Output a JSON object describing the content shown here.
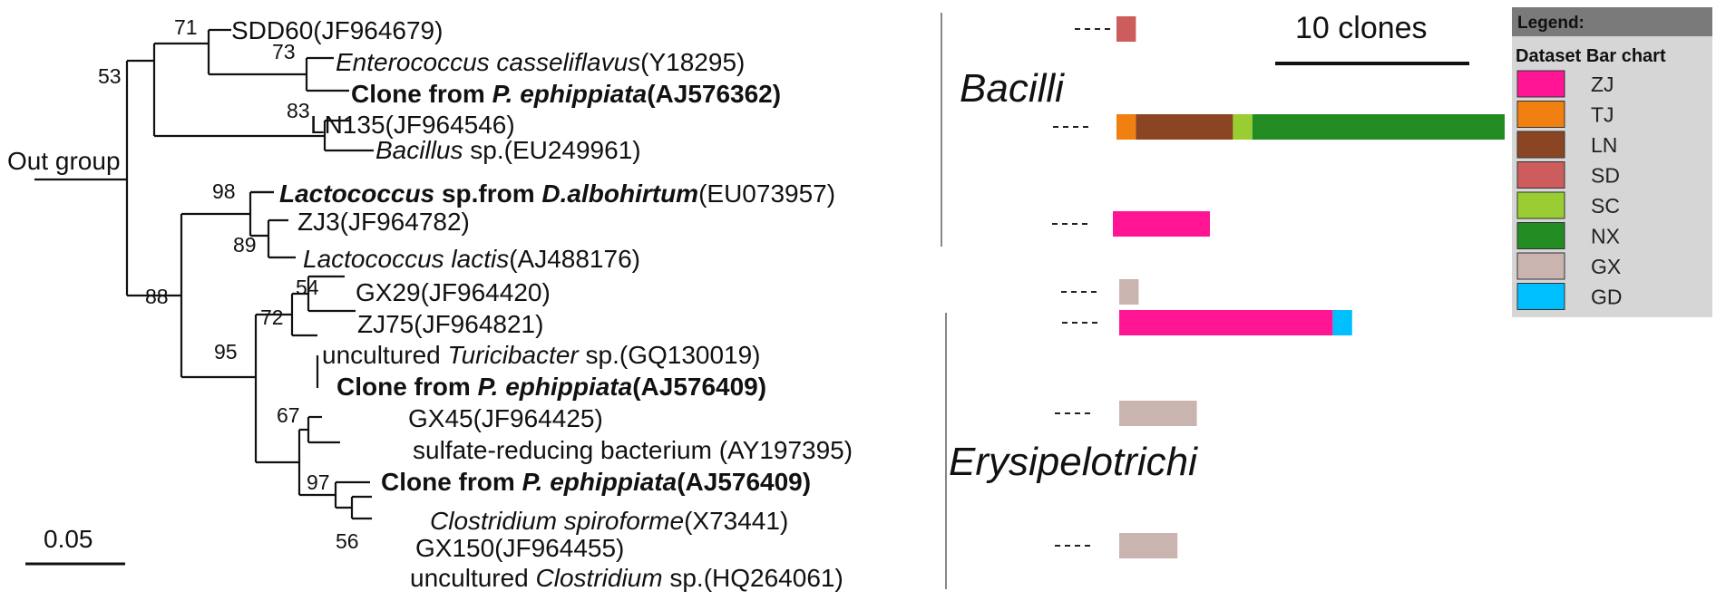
{
  "scale": {
    "label": "0.05"
  },
  "outgroup": {
    "label": "Out group"
  },
  "bootstrap": {
    "b71": "71",
    "b53": "53",
    "b73": "73",
    "b83": "83",
    "b98": "98",
    "b89": "89",
    "b88": "88",
    "b54": "54",
    "b72": "72",
    "b95": "95",
    "b67": "67",
    "b97": "97",
    "b56": "56"
  },
  "leaves": {
    "sdd60": [
      {
        "t": "SDD60(JF964679)"
      }
    ],
    "entero": [
      {
        "t": "Enterococcus casseliflavus",
        "i": true
      },
      {
        "t": "(Y18295)"
      }
    ],
    "clone1": [
      {
        "t": "Clone from ",
        "b": true
      },
      {
        "t": "P. ephippiata",
        "b": true,
        "i": true
      },
      {
        "t": "(AJ576362)",
        "b": true
      }
    ],
    "ln135": [
      {
        "t": "LN135(JF964546)"
      }
    ],
    "bacillus": [
      {
        "t": "Bacillus",
        "i": true
      },
      {
        "t": " sp.(EU249961)"
      }
    ],
    "lacto_sp": [
      {
        "t": "Lactococcus",
        "b": true,
        "i": true
      },
      {
        "t": " sp.from ",
        "b": true
      },
      {
        "t": "D.albohirtum",
        "b": true,
        "i": true
      },
      {
        "t": "(EU073957)"
      }
    ],
    "zj3": [
      {
        "t": "ZJ3(JF964782)"
      }
    ],
    "lacto_lac": [
      {
        "t": "Lactococcus lactis",
        "i": true
      },
      {
        "t": "(AJ488176)"
      }
    ],
    "gx29": [
      {
        "t": "GX29(JF964420)"
      }
    ],
    "zj75": [
      {
        "t": "ZJ75(JF964821)"
      }
    ],
    "turici": [
      {
        "t": "uncultured "
      },
      {
        "t": "Turicibacter",
        "i": true
      },
      {
        "t": " sp.(GQ130019)"
      }
    ],
    "clone2": [
      {
        "t": "Clone from ",
        "b": true
      },
      {
        "t": "P. ephippiata",
        "b": true,
        "i": true
      },
      {
        "t": "(AJ576409)",
        "b": true
      }
    ],
    "gx45": [
      {
        "t": "GX45(JF964425)"
      }
    ],
    "sulfate": [
      {
        "t": "sulfate-reducing bacterium (AY197395)"
      }
    ],
    "clone3": [
      {
        "t": "Clone from ",
        "b": true
      },
      {
        "t": "P. ephippiata",
        "b": true,
        "i": true
      },
      {
        "t": "(AJ576409)",
        "b": true
      }
    ],
    "clos_spiro": [
      {
        "t": "Clostridium spiroforme",
        "i": true
      },
      {
        "t": "(X73441)"
      }
    ],
    "gx150": [
      {
        "t": "GX150(JF964455)"
      }
    ],
    "clos_unc": [
      {
        "t": "uncultured "
      },
      {
        "t": "Clostridium",
        "i": true
      },
      {
        "t": " sp.(HQ264061)"
      }
    ]
  },
  "classes": {
    "bacilli": "Bacilli",
    "erysipelotrichi": "Erysipelotrichi"
  },
  "scale_bar_label": "10 clones",
  "legend": {
    "title": "Legend:",
    "subtitle": "Dataset Bar chart",
    "items": [
      {
        "label": "ZJ",
        "color": "#ff1493"
      },
      {
        "label": "TJ",
        "color": "#f08010"
      },
      {
        "label": "LN",
        "color": "#8b4522"
      },
      {
        "label": "SD",
        "color": "#cd5c5c"
      },
      {
        "label": "SC",
        "color": "#9acd32"
      },
      {
        "label": "NX",
        "color": "#228b22"
      },
      {
        "label": "GX",
        "color": "#c9b4b0"
      },
      {
        "label": "GD",
        "color": "#00bfff"
      }
    ]
  },
  "chart_data": {
    "type": "bar",
    "unit": "clones",
    "scale_bar_clones": 10,
    "rows": [
      {
        "segments": [
          {
            "site": "SD",
            "clones": 1
          }
        ]
      },
      {
        "segments": [
          {
            "site": "TJ",
            "clones": 1
          },
          {
            "site": "LN",
            "clones": 5
          },
          {
            "site": "SC",
            "clones": 1
          },
          {
            "site": "NX",
            "clones": 13
          }
        ]
      },
      {
        "segments": [
          {
            "site": "ZJ",
            "clones": 5
          }
        ]
      },
      {
        "segments": [
          {
            "site": "GX",
            "clones": 1
          }
        ]
      },
      {
        "segments": [
          {
            "site": "ZJ",
            "clones": 11
          },
          {
            "site": "GD",
            "clones": 1
          }
        ]
      },
      {
        "segments": [
          {
            "site": "GX",
            "clones": 4
          }
        ]
      },
      {
        "segments": [
          {
            "site": "GX",
            "clones": 3
          }
        ]
      }
    ]
  }
}
